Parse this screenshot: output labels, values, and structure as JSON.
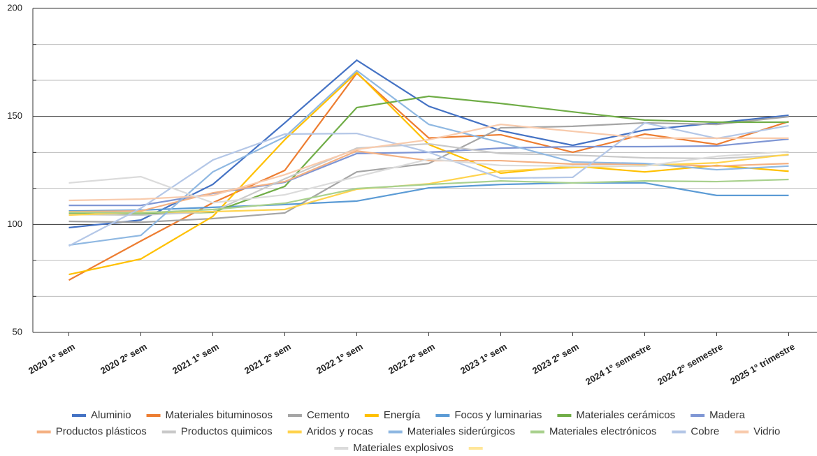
{
  "chart_data": {
    "type": "line",
    "categories": [
      "2020 1º sem",
      "2020 2º sem",
      "2021 1º sem",
      "2021 2º sem",
      "2022 1º sem",
      "2022 2º sem",
      "2023 1º sem",
      "2023 2º sem",
      "2024 1º semestre",
      "2024 2º semestre",
      "2025 1º trimestre"
    ],
    "ylim": [
      50,
      200
    ],
    "yticks": [
      50,
      100,
      150,
      200
    ],
    "minor_yticks": [
      66.7,
      83.3,
      116.7,
      133.3,
      166.7,
      183.3
    ],
    "grid": true,
    "series": [
      {
        "name": "Aluminio",
        "color": "#4472c4",
        "values": [
          98.5,
          102,
          118.5,
          147,
          176,
          154.7,
          143.4,
          136.6,
          143.7,
          147,
          150.5
        ]
      },
      {
        "name": "Materiales bituminosos",
        "color": "#ed7d31",
        "values": [
          74.2,
          92.3,
          110,
          125,
          170,
          140,
          141.5,
          133.4,
          141.8,
          137,
          147.6
        ]
      },
      {
        "name": "Cemento",
        "color": "#a5a5a5",
        "values": [
          101.4,
          101,
          102.7,
          105.3,
          124.3,
          128.2,
          144.7,
          145.4,
          147,
          146.3,
          149.9
        ]
      },
      {
        "name": "Energía",
        "color": "#ffc000",
        "values": [
          76.8,
          84,
          103.7,
          139.2,
          170.3,
          137,
          123.7,
          127,
          124.3,
          127.3,
          124.6
        ]
      },
      {
        "name": "Focos y luminarias",
        "color": "#5b9bd5",
        "values": [
          106.2,
          106.6,
          107.9,
          109.2,
          110.8,
          116.9,
          118.5,
          119.2,
          119.2,
          113.4,
          113.4
        ]
      },
      {
        "name": "Materiales cerámicos",
        "color": "#70ad47",
        "values": [
          104.9,
          104.9,
          105.6,
          117.6,
          154.1,
          159.3,
          156,
          152.1,
          148.3,
          147.3,
          147.3
        ]
      },
      {
        "name": "Madera",
        "color": "#7f96d4",
        "values": [
          108.8,
          108.8,
          114.3,
          119.5,
          132.8,
          133.4,
          135.3,
          136,
          136,
          136.3,
          139.5
        ]
      },
      {
        "name": "Productos plásticos",
        "color": "#f4b183",
        "values": [
          105.9,
          106.2,
          114.6,
          119.8,
          134,
          129.5,
          129.5,
          127.9,
          127.9,
          127,
          128.2
        ]
      },
      {
        "name": "Productos quimicos",
        "color": "#c9c9c9",
        "values": [
          104.6,
          104.3,
          105.9,
          121.1,
          135.3,
          137.3,
          132.8,
          132.1,
          130.8,
          130.5,
          132.1
        ]
      },
      {
        "name": "Aridos y rocas",
        "color": "#ffd34d",
        "values": [
          104.3,
          105.6,
          105.9,
          106.9,
          116.3,
          118.8,
          124.7,
          126.3,
          127.3,
          128.5,
          132.4
        ]
      },
      {
        "name": "Materiales siderúrgicos",
        "color": "#8fb8e2",
        "values": [
          90.4,
          94.9,
          124.3,
          140.5,
          171.2,
          146.3,
          137.9,
          128.9,
          128.2,
          125.3,
          127
        ]
      },
      {
        "name": "Materiales electrónicos",
        "color": "#a9d18e",
        "values": [
          105.6,
          105.3,
          106.9,
          109.8,
          116.6,
          118.5,
          120.1,
          119.2,
          120.1,
          119.8,
          120.8
        ]
      },
      {
        "name": "Cobre",
        "color": "#b4c7e7",
        "values": [
          90,
          107.5,
          129.8,
          141.8,
          142.1,
          133.4,
          121.4,
          121.8,
          147,
          139.8,
          145.7
        ]
      },
      {
        "name": "Vidrio",
        "color": "#f8cbad",
        "values": [
          111.1,
          111.7,
          113.4,
          123,
          134.7,
          139.2,
          146.3,
          143.1,
          139.9,
          139.9,
          139.9
        ]
      },
      {
        "name": "Materiales explosivos",
        "color": "#dbdbdb",
        "values": [
          119.2,
          122.1,
          110,
          113.7,
          122.1,
          130.2,
          127.3,
          127,
          127,
          131.5,
          133.7
        ]
      },
      {
        "name": null,
        "color": "#ffe699",
        "values": [
          null,
          null,
          null,
          null,
          null,
          null,
          null,
          null,
          null,
          null,
          null
        ]
      }
    ]
  }
}
